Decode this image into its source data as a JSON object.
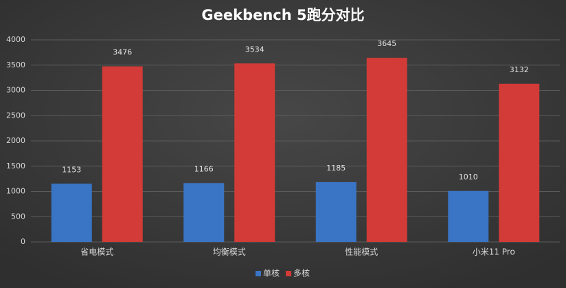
{
  "chart_data": {
    "type": "bar",
    "title": "Geekbench 5跑分对比",
    "categories": [
      "省电模式",
      "均衡模式",
      "性能模式",
      "小米11 Pro"
    ],
    "series": [
      {
        "name": "单核",
        "color": "#3a74c4",
        "values": [
          1153,
          1166,
          1185,
          1010
        ]
      },
      {
        "name": "多核",
        "color": "#d23b37",
        "values": [
          3476,
          3534,
          3645,
          3132
        ]
      }
    ],
    "ylim": [
      0,
      4000
    ],
    "yticks": [
      0,
      500,
      1000,
      1500,
      2000,
      2500,
      3000,
      3500,
      4000
    ],
    "grid": true,
    "legend": "bottom"
  }
}
